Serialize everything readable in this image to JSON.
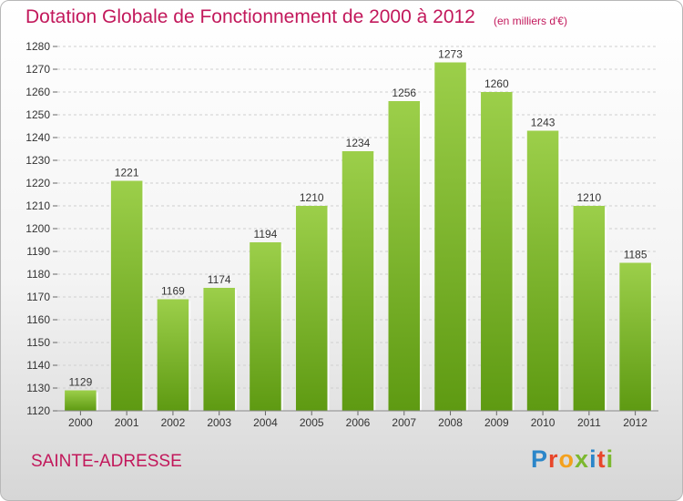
{
  "header": {
    "title": "Dotation Globale de Fonctionnement de 2000 à 2012",
    "subtitle": "(en milliers d'€)"
  },
  "footer": {
    "commune": "SAINTE-ADRESSE",
    "logo_letters": [
      "P",
      "r",
      "o",
      "x",
      "i",
      "t",
      "i"
    ]
  },
  "colors": {
    "title": "#c2185b",
    "bar_top": "#9ccf4a",
    "bar_bottom": "#5e9a12"
  },
  "chart_data": {
    "type": "bar",
    "title": "Dotation Globale de Fonctionnement de 2000 à 2012",
    "subtitle": "(en milliers d'€)",
    "xlabel": "",
    "ylabel": "",
    "categories": [
      "2000",
      "2001",
      "2002",
      "2003",
      "2004",
      "2005",
      "2006",
      "2007",
      "2008",
      "2009",
      "2010",
      "2011",
      "2012"
    ],
    "values": [
      1129,
      1221,
      1169,
      1174,
      1194,
      1210,
      1234,
      1256,
      1273,
      1260,
      1243,
      1210,
      1185
    ],
    "ylim": [
      1120,
      1280
    ],
    "ytick_step": 10,
    "grid": true,
    "legend": "none"
  }
}
